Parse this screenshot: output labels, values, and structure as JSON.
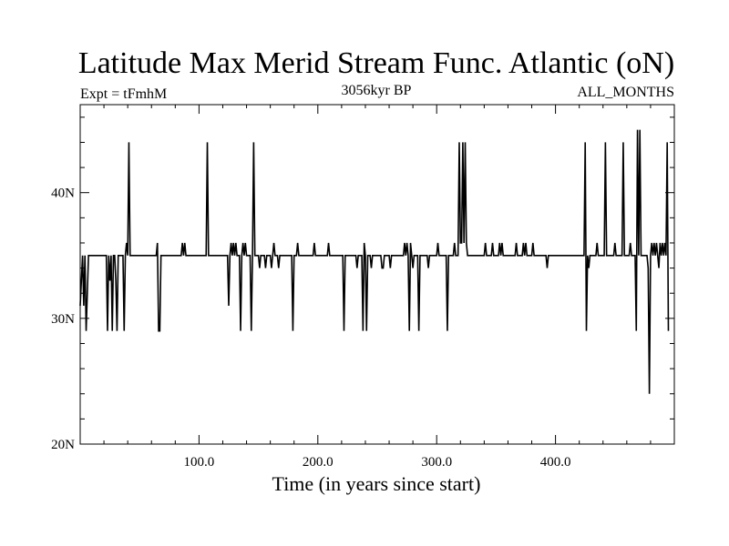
{
  "chart_data": {
    "type": "line",
    "title": "Latitude Max Merid Stream Func. Atlantic (oN)",
    "subtitle_left": "Expt = tFmhM",
    "subtitle_center": "3056kyr BP",
    "subtitle_right": "ALL_MONTHS",
    "xlabel": "Time (in years since start)",
    "ylabel": "",
    "xlim": [
      0,
      500
    ],
    "ylim": [
      20,
      47
    ],
    "x_ticks": [
      {
        "value": 100,
        "label": "100.0"
      },
      {
        "value": 200,
        "label": "200.0"
      },
      {
        "value": 300,
        "label": "300.0"
      },
      {
        "value": 400,
        "label": "400.0"
      }
    ],
    "y_ticks": [
      {
        "value": 20,
        "label": "20N"
      },
      {
        "value": 30,
        "label": "30N"
      },
      {
        "value": 40,
        "label": "40N"
      }
    ],
    "baseline": 35,
    "series": [
      {
        "name": "latitude_max",
        "points": [
          [
            0,
            31
          ],
          [
            1,
            33
          ],
          [
            2,
            35
          ],
          [
            3,
            31
          ],
          [
            4,
            35
          ],
          [
            5,
            29
          ],
          [
            6,
            32
          ],
          [
            7,
            35
          ],
          [
            8,
            35
          ],
          [
            22,
            35
          ],
          [
            23,
            29
          ],
          [
            24,
            35
          ],
          [
            25,
            33
          ],
          [
            26,
            35
          ],
          [
            27,
            29
          ],
          [
            28,
            35
          ],
          [
            29,
            35
          ],
          [
            30,
            33
          ],
          [
            31,
            29
          ],
          [
            32,
            35
          ],
          [
            36,
            35
          ],
          [
            37,
            29
          ],
          [
            38,
            35
          ],
          [
            39,
            36
          ],
          [
            40,
            35
          ],
          [
            41,
            44
          ],
          [
            42,
            35
          ],
          [
            64,
            35
          ],
          [
            65,
            36
          ],
          [
            66,
            29
          ],
          [
            67,
            29
          ],
          [
            68,
            35
          ],
          [
            85,
            35
          ],
          [
            86,
            36
          ],
          [
            87,
            35
          ],
          [
            88,
            36
          ],
          [
            89,
            35
          ],
          [
            106,
            35
          ],
          [
            107,
            44
          ],
          [
            108,
            35
          ],
          [
            124,
            35
          ],
          [
            125,
            31
          ],
          [
            126,
            35
          ],
          [
            127,
            36
          ],
          [
            128,
            35
          ],
          [
            129,
            36
          ],
          [
            130,
            35
          ],
          [
            131,
            36
          ],
          [
            132,
            35
          ],
          [
            134,
            35
          ],
          [
            135,
            29
          ],
          [
            136,
            35
          ],
          [
            137,
            36
          ],
          [
            138,
            35
          ],
          [
            139,
            36
          ],
          [
            140,
            35
          ],
          [
            143,
            35
          ],
          [
            144,
            29
          ],
          [
            145,
            35
          ],
          [
            146,
            44
          ],
          [
            147,
            35
          ],
          [
            150,
            35
          ],
          [
            151,
            34
          ],
          [
            152,
            35
          ],
          [
            155,
            35
          ],
          [
            156,
            34
          ],
          [
            157,
            35
          ],
          [
            160,
            35
          ],
          [
            161,
            34
          ],
          [
            162,
            35
          ],
          [
            163,
            36
          ],
          [
            164,
            35
          ],
          [
            166,
            35
          ],
          [
            167,
            34
          ],
          [
            168,
            35
          ],
          [
            178,
            35
          ],
          [
            179,
            29
          ],
          [
            180,
            35
          ],
          [
            182,
            35
          ],
          [
            183,
            36
          ],
          [
            184,
            35
          ],
          [
            196,
            35
          ],
          [
            197,
            36
          ],
          [
            198,
            35
          ],
          [
            208,
            35
          ],
          [
            209,
            36
          ],
          [
            210,
            35
          ],
          [
            221,
            35
          ],
          [
            222,
            29
          ],
          [
            223,
            35
          ],
          [
            232,
            35
          ],
          [
            233,
            34
          ],
          [
            234,
            35
          ],
          [
            237,
            35
          ],
          [
            238,
            29
          ],
          [
            239,
            36
          ],
          [
            240,
            35
          ],
          [
            241,
            29
          ],
          [
            242,
            35
          ],
          [
            244,
            35
          ],
          [
            245,
            34
          ],
          [
            246,
            35
          ],
          [
            253,
            35
          ],
          [
            254,
            34
          ],
          [
            255,
            34
          ],
          [
            256,
            35
          ],
          [
            260,
            35
          ],
          [
            261,
            34
          ],
          [
            262,
            35
          ],
          [
            272,
            35
          ],
          [
            273,
            36
          ],
          [
            274,
            35
          ],
          [
            275,
            36
          ],
          [
            276,
            35
          ],
          [
            277,
            29
          ],
          [
            278,
            36
          ],
          [
            279,
            35
          ],
          [
            280,
            34
          ],
          [
            281,
            35
          ],
          [
            284,
            35
          ],
          [
            285,
            29
          ],
          [
            286,
            35
          ],
          [
            292,
            35
          ],
          [
            293,
            34
          ],
          [
            294,
            35
          ],
          [
            300,
            35
          ],
          [
            301,
            36
          ],
          [
            302,
            35
          ],
          [
            308,
            35
          ],
          [
            309,
            29
          ],
          [
            310,
            35
          ],
          [
            314,
            35
          ],
          [
            315,
            36
          ],
          [
            316,
            35
          ],
          [
            318,
            35
          ],
          [
            319,
            44
          ],
          [
            320,
            36
          ],
          [
            321,
            36
          ],
          [
            322,
            44
          ],
          [
            323,
            36
          ],
          [
            324,
            44
          ],
          [
            325,
            36
          ],
          [
            326,
            35
          ],
          [
            340,
            35
          ],
          [
            341,
            36
          ],
          [
            342,
            35
          ],
          [
            346,
            35
          ],
          [
            347,
            36
          ],
          [
            348,
            35
          ],
          [
            352,
            35
          ],
          [
            353,
            36
          ],
          [
            354,
            35
          ],
          [
            355,
            36
          ],
          [
            356,
            35
          ],
          [
            366,
            35
          ],
          [
            367,
            36
          ],
          [
            368,
            35
          ],
          [
            372,
            35
          ],
          [
            373,
            36
          ],
          [
            374,
            35
          ],
          [
            375,
            36
          ],
          [
            376,
            35
          ],
          [
            380,
            35
          ],
          [
            381,
            36
          ],
          [
            382,
            35
          ],
          [
            392,
            35
          ],
          [
            393,
            34
          ],
          [
            394,
            35
          ],
          [
            424,
            35
          ],
          [
            425,
            44
          ],
          [
            426,
            29
          ],
          [
            427,
            35
          ],
          [
            428,
            34
          ],
          [
            429,
            35
          ],
          [
            434,
            35
          ],
          [
            435,
            36
          ],
          [
            436,
            35
          ],
          [
            441,
            35
          ],
          [
            442,
            44
          ],
          [
            443,
            35
          ],
          [
            449,
            35
          ],
          [
            450,
            36
          ],
          [
            451,
            35
          ],
          [
            456,
            35
          ],
          [
            457,
            44
          ],
          [
            458,
            35
          ],
          [
            462,
            35
          ],
          [
            463,
            36
          ],
          [
            464,
            35
          ],
          [
            467,
            35
          ],
          [
            468,
            29
          ],
          [
            469,
            45
          ],
          [
            470,
            35
          ],
          [
            471,
            45
          ],
          [
            472,
            35
          ],
          [
            477,
            35
          ],
          [
            478,
            34
          ],
          [
            479,
            24
          ],
          [
            480,
            35
          ],
          [
            481,
            36
          ],
          [
            482,
            35
          ],
          [
            483,
            36
          ],
          [
            484,
            35
          ],
          [
            485,
            36
          ],
          [
            486,
            35
          ],
          [
            487,
            34
          ],
          [
            488,
            36
          ],
          [
            489,
            35
          ],
          [
            490,
            36
          ],
          [
            491,
            35
          ],
          [
            492,
            36
          ],
          [
            493,
            35
          ],
          [
            494,
            44
          ],
          [
            495,
            29
          ]
        ]
      }
    ]
  }
}
